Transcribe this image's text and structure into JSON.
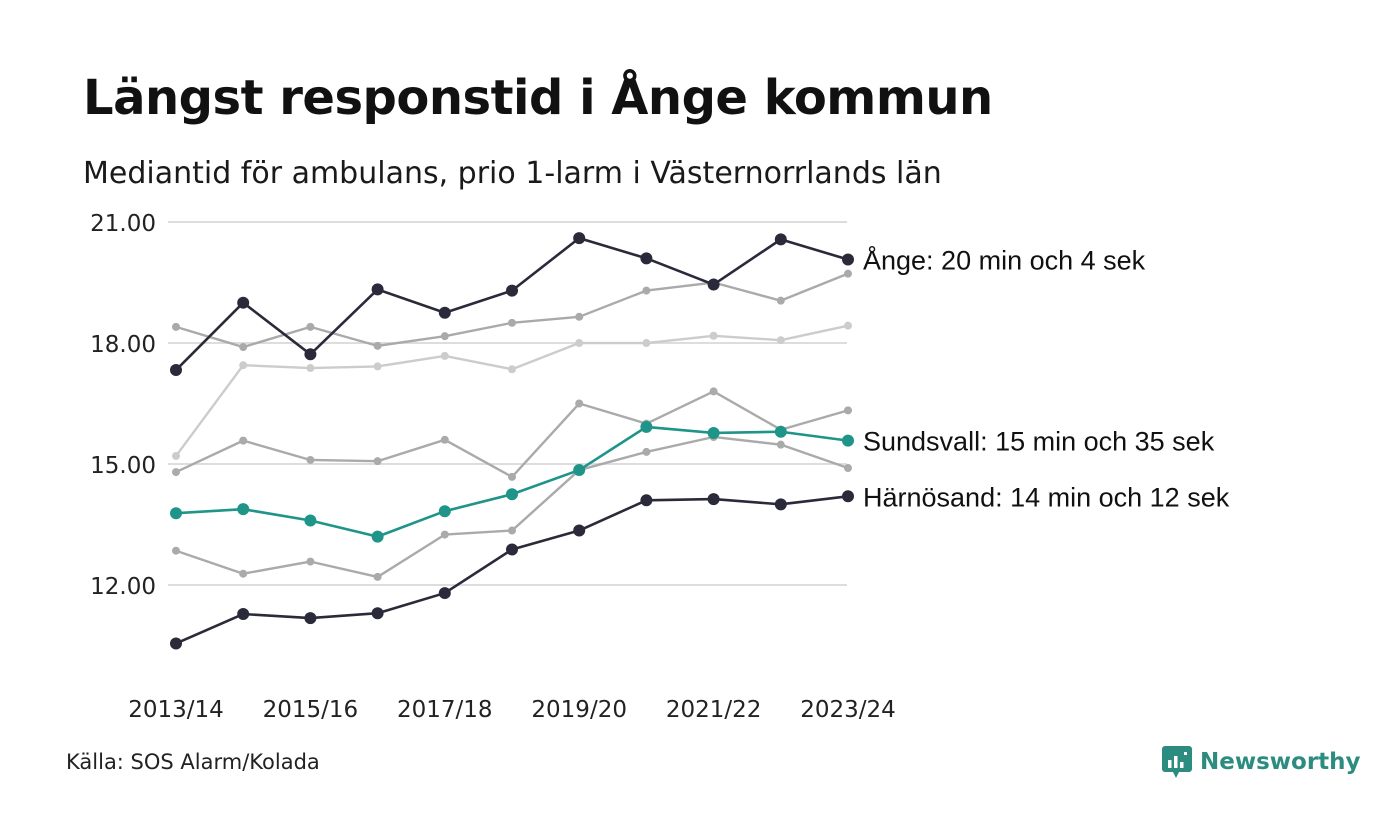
{
  "title": "Längst responstid i Ånge kommun",
  "subtitle": "Mediantid för ambulans, prio 1-larm i Västernorrlands län",
  "source": "Källa: SOS Alarm/Kolada",
  "brand": {
    "name": "Newsworthy",
    "icon": "newsworthy-logo-icon",
    "color": "#2d8c80"
  },
  "chart_data": {
    "type": "line",
    "title": "Längst responstid i Ånge kommun",
    "subtitle": "Mediantid för ambulans, prio 1-larm i Västernorrlands län",
    "x": [
      "2013/14",
      "2014/15",
      "2015/16",
      "2016/17",
      "2017/18",
      "2018/19",
      "2019/20",
      "2020/21",
      "2021/22",
      "2022/23",
      "2023/24"
    ],
    "x_tick_labels": [
      "2013/14",
      "2015/16",
      "2017/18",
      "2019/20",
      "2021/22",
      "2023/24"
    ],
    "y_ticks": [
      "12.00",
      "15.00",
      "18.00",
      "21.00"
    ],
    "ylim": [
      10.5,
      21.5
    ],
    "y_tick_values": [
      12,
      15,
      18,
      21
    ],
    "grid": true,
    "series": [
      {
        "name": "",
        "role": "background",
        "color": "#cccccc",
        "values": [
          15.2,
          17.45,
          17.38,
          17.42,
          17.68,
          17.35,
          18.0,
          18.0,
          18.18,
          18.07,
          18.43
        ]
      },
      {
        "name": "",
        "role": "background",
        "color": "#aaaaaa",
        "values": [
          18.4,
          17.9,
          18.4,
          17.93,
          18.17,
          18.5,
          18.65,
          19.3,
          19.5,
          19.05,
          19.72
        ]
      },
      {
        "name": "",
        "role": "background",
        "color": "#aaaaaa",
        "values": [
          14.8,
          15.58,
          15.1,
          15.07,
          15.6,
          14.68,
          16.5,
          16.0,
          16.8,
          15.85,
          16.33
        ]
      },
      {
        "name": "",
        "role": "background",
        "color": "#aaaaaa",
        "values": [
          12.85,
          12.28,
          12.58,
          12.2,
          13.25,
          13.35,
          14.85,
          15.3,
          15.67,
          15.48,
          14.9
        ]
      },
      {
        "name": "Ånge",
        "role": "highlight",
        "color": "#2b2a3a",
        "label": "Ånge: 20 min och 4 sek",
        "values": [
          17.33,
          19.0,
          17.72,
          19.33,
          18.75,
          19.3,
          20.6,
          20.1,
          19.45,
          20.57,
          20.07
        ]
      },
      {
        "name": "Sundsvall",
        "role": "highlight",
        "color": "#1f9488",
        "label": "Sundsvall: 15 min och 35 sek",
        "values": [
          13.78,
          13.88,
          13.6,
          13.2,
          13.83,
          14.25,
          14.85,
          15.92,
          15.77,
          15.8,
          15.58
        ]
      },
      {
        "name": "Härnösand",
        "role": "highlight",
        "color": "#2b2a3a",
        "label": "Härnösand: 14 min och 12 sek",
        "values": [
          10.55,
          11.28,
          11.18,
          11.3,
          11.8,
          12.88,
          13.35,
          14.1,
          14.13,
          14.0,
          14.2
        ]
      }
    ]
  }
}
